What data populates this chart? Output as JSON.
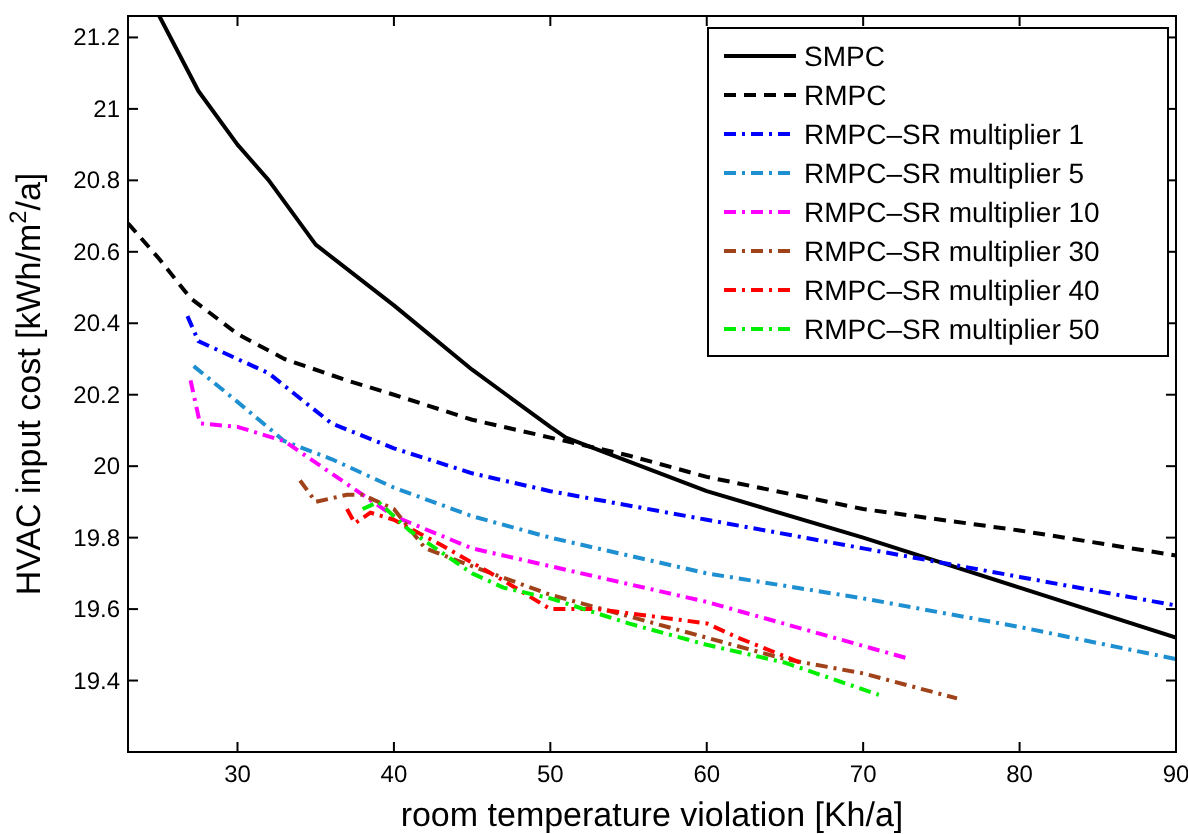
{
  "chart_data": {
    "type": "line",
    "xlabel": "room temperature violation [Kh/a]",
    "ylabel": "HVAC input cost [kWh/m$^{2}$/a]",
    "xlim": [
      23,
      90
    ],
    "ylim": [
      19.2,
      21.26
    ],
    "xticks": [
      30,
      40,
      50,
      60,
      70,
      80,
      90
    ],
    "yticks": [
      19.4,
      19.6,
      19.8,
      20,
      20.2,
      20.4,
      20.6,
      20.8,
      21,
      21.2
    ],
    "grid": false,
    "legend": "top right",
    "marker": "none",
    "series": [
      {
        "name": "SMPC",
        "color": "#000000",
        "line_style": "solid",
        "x": [
          25,
          27.5,
          30,
          32,
          35,
          40,
          45,
          50,
          51,
          60,
          70,
          80,
          90
        ],
        "values": [
          21.26,
          21.05,
          20.9,
          20.8,
          20.62,
          20.45,
          20.27,
          20.11,
          20.08,
          19.93,
          19.8,
          19.66,
          19.52
        ]
      },
      {
        "name": "RMPC",
        "color": "#000000",
        "line_style": "dashed",
        "x": [
          23,
          25,
          27,
          30,
          33,
          37,
          40,
          45,
          50,
          55,
          60,
          70,
          80,
          90
        ],
        "values": [
          20.68,
          20.58,
          20.47,
          20.37,
          20.3,
          20.24,
          20.2,
          20.13,
          20.08,
          20.03,
          19.97,
          19.88,
          19.82,
          19.75
        ]
      },
      {
        "name": "RMPC–SR multiplier 1",
        "color": "#0000ff",
        "line_style": "dashdot",
        "x": [
          26.8,
          27.5,
          30,
          32,
          36,
          40,
          45,
          50,
          60,
          70,
          80,
          90
        ],
        "values": [
          20.42,
          20.35,
          20.3,
          20.26,
          20.12,
          20.05,
          19.98,
          19.93,
          19.85,
          19.77,
          19.69,
          19.61
        ]
      },
      {
        "name": "RMPC–SR multiplier 5",
        "color": "#1e8fd0",
        "line_style": "dashdot",
        "x": [
          27.2,
          30,
          33,
          36,
          40,
          45,
          50,
          60,
          70,
          80,
          90
        ],
        "values": [
          20.28,
          20.18,
          20.07,
          20.02,
          19.94,
          19.86,
          19.8,
          19.7,
          19.63,
          19.55,
          19.46
        ]
      },
      {
        "name": "RMPC–SR multiplier 10",
        "color": "#ff00ff",
        "line_style": "dashdot",
        "x": [
          27,
          27.6,
          30,
          33,
          36,
          40,
          45,
          50,
          60,
          73
        ],
        "values": [
          20.24,
          20.12,
          20.11,
          20.07,
          19.98,
          19.86,
          19.77,
          19.72,
          19.62,
          19.46
        ]
      },
      {
        "name": "RMPC–SR multiplier 30",
        "color": "#a0421a",
        "line_style": "dashdot",
        "x": [
          34,
          35,
          37,
          38,
          40,
          42,
          45,
          50,
          55,
          60,
          65,
          70,
          76
        ],
        "values": [
          19.96,
          19.9,
          19.92,
          19.92,
          19.88,
          19.77,
          19.72,
          19.64,
          19.58,
          19.52,
          19.46,
          19.42,
          19.35
        ]
      },
      {
        "name": "RMPC–SR multiplier 40",
        "color": "#ff0000",
        "line_style": "dashdot",
        "x": [
          37,
          37.5,
          38.5,
          40,
          43,
          47,
          50,
          53,
          60,
          62,
          66
        ],
        "values": [
          19.88,
          19.84,
          19.87,
          19.85,
          19.78,
          19.68,
          19.6,
          19.6,
          19.56,
          19.52,
          19.45
        ]
      },
      {
        "name": "RMPC–SR multiplier 50",
        "color": "#00ee00",
        "line_style": "dashdot",
        "x": [
          38,
          39,
          41,
          45,
          47,
          50,
          55,
          60,
          65,
          71
        ],
        "values": [
          19.88,
          19.9,
          19.82,
          19.7,
          19.66,
          19.63,
          19.56,
          19.5,
          19.45,
          19.36
        ]
      }
    ]
  }
}
